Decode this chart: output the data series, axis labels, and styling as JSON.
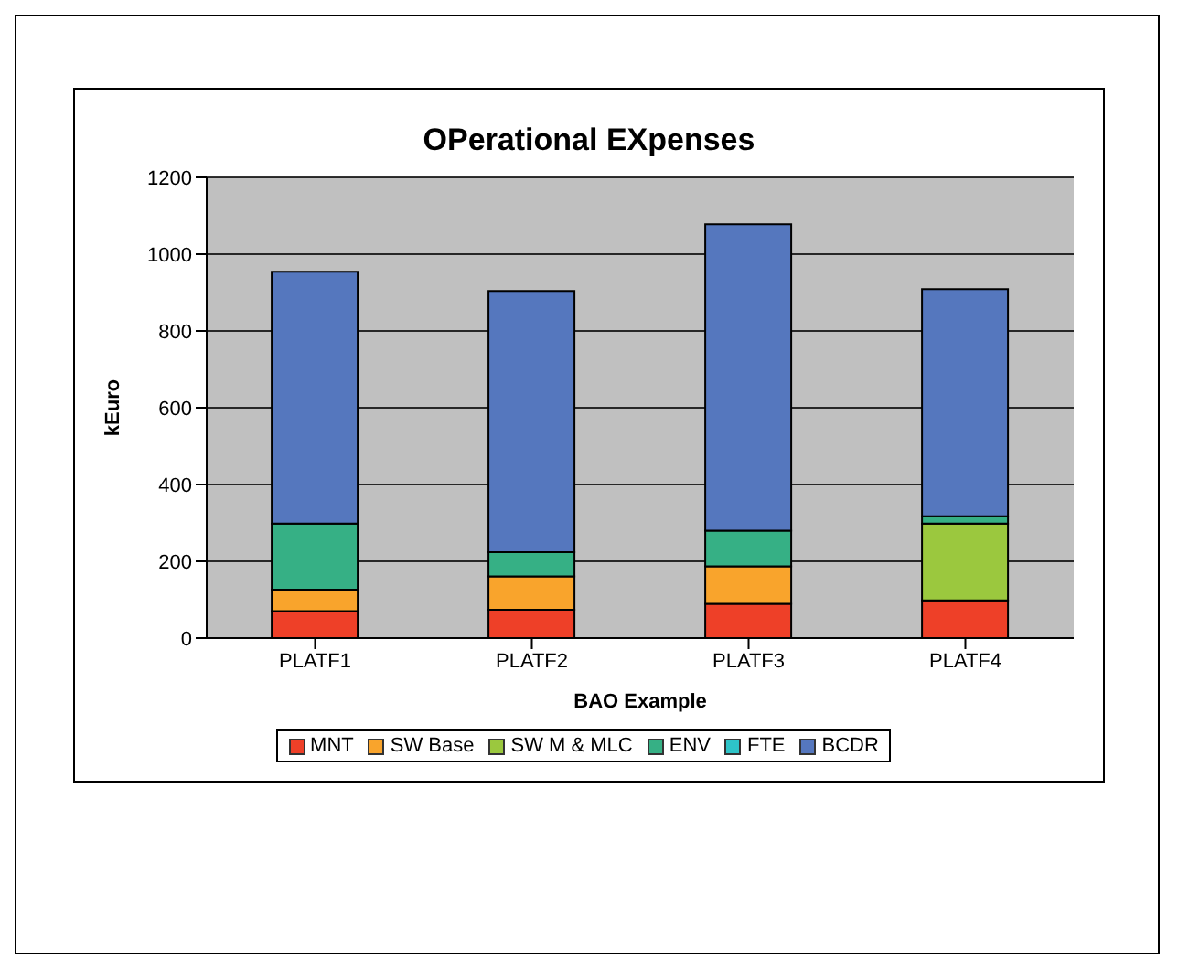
{
  "chart_data": {
    "type": "bar",
    "title": "OPerational EXpenses",
    "xlabel": "BAO Example",
    "ylabel": "kEuro",
    "categories": [
      "PLATF1",
      "PLATF2",
      "PLATF3",
      "PLATF4"
    ],
    "stacked": true,
    "series": [
      {
        "name": "MNT",
        "color": "#ee4028",
        "values": [
          70,
          74,
          89,
          98
        ]
      },
      {
        "name": "SW Base",
        "color": "#f9a42c",
        "values": [
          56,
          87,
          98,
          0
        ]
      },
      {
        "name": "SW M & MLC",
        "color": "#9bc83e",
        "values": [
          0,
          0,
          0,
          200
        ]
      },
      {
        "name": "ENV",
        "color": "#36b085",
        "values": [
          172,
          63,
          93,
          19
        ]
      },
      {
        "name": "FTE",
        "color": "#2ec4c8",
        "values": [
          0,
          0,
          0,
          0
        ]
      },
      {
        "name": "BCDR",
        "color": "#5577be",
        "values": [
          656,
          680,
          798,
          592
        ]
      }
    ],
    "ylim": [
      0,
      1200
    ],
    "yticks": [
      0,
      200,
      400,
      600,
      800,
      1000,
      1200
    ],
    "grid": "y",
    "legend": "bottom"
  }
}
